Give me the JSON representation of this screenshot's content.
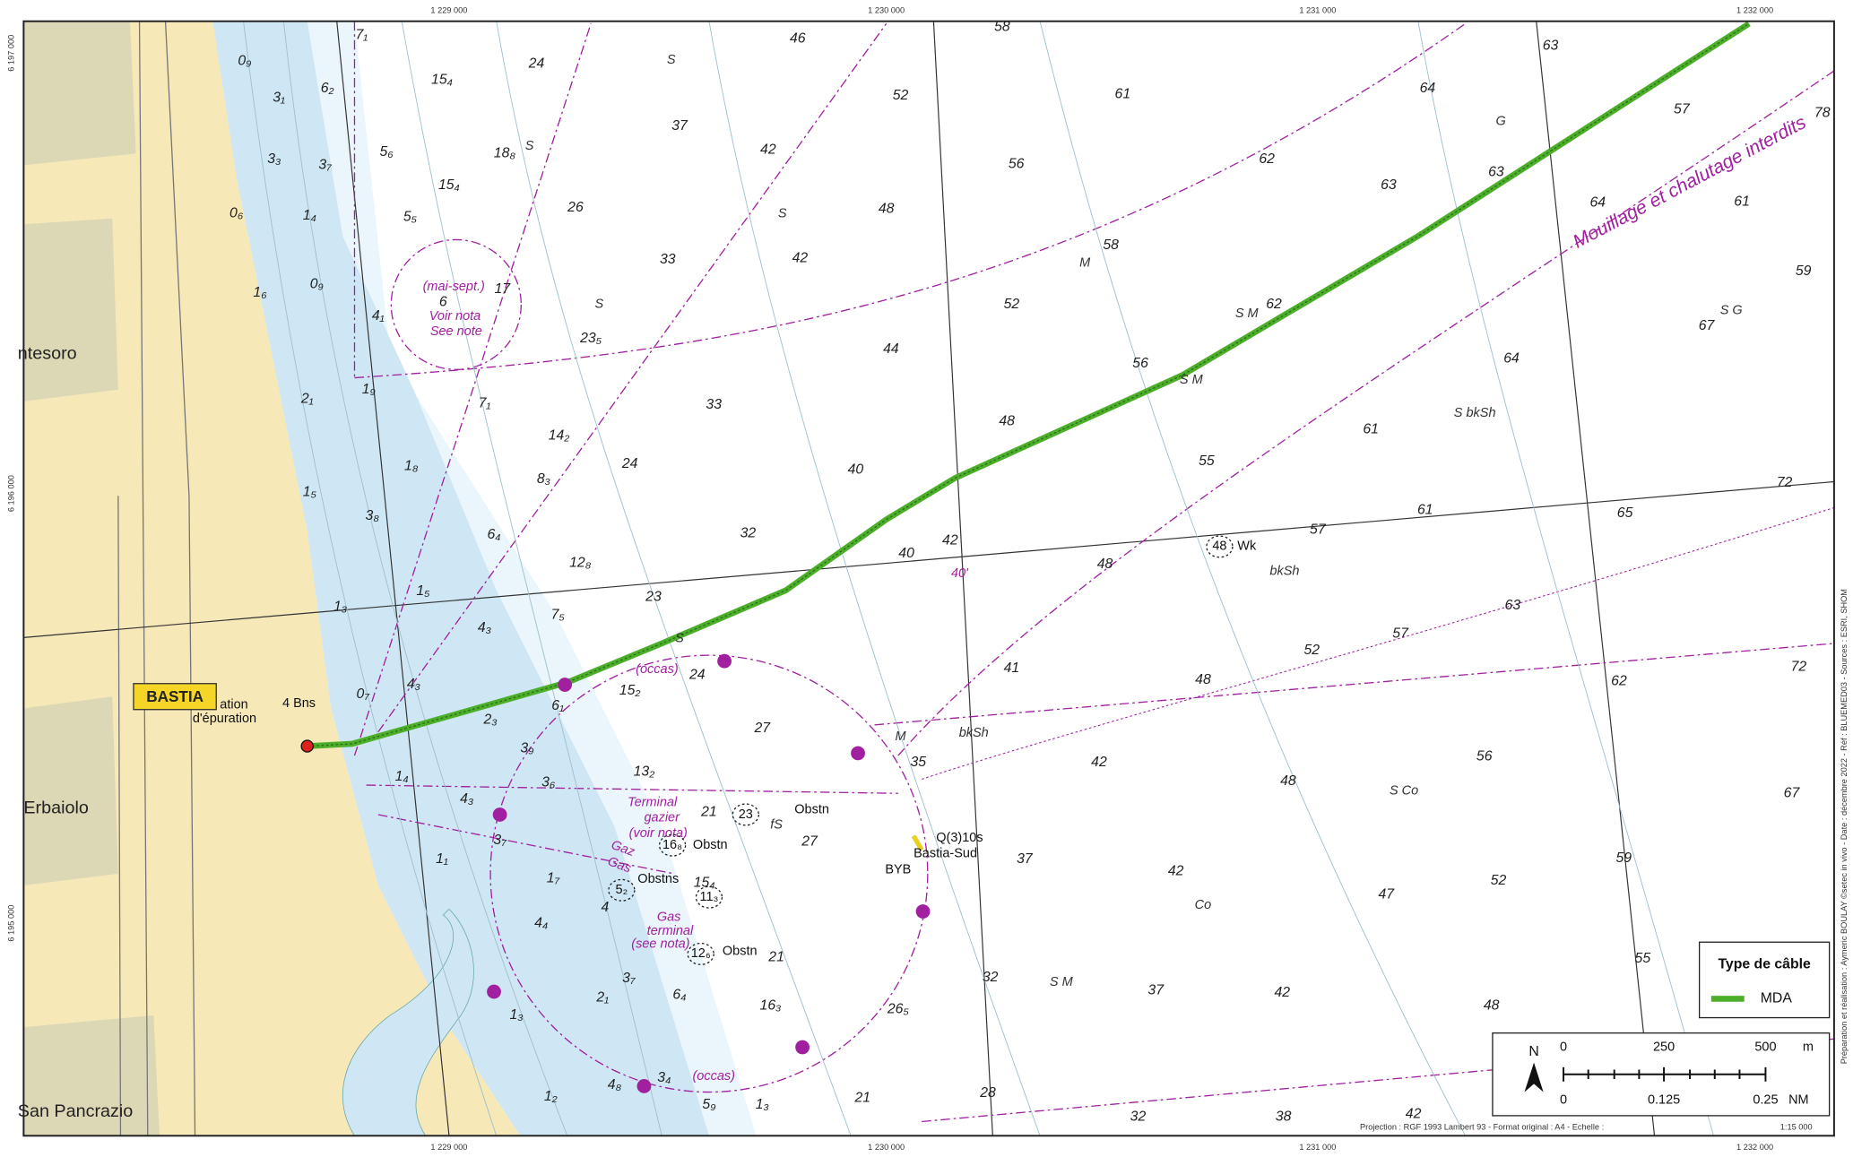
{
  "map": {
    "grid_top": [
      "1 229 000",
      "1 230 000",
      "1 231 000",
      "1 232 000"
    ],
    "grid_bottom": [
      "1 229 000",
      "1 230 000",
      "1 231 000",
      "1 232 000"
    ],
    "grid_left": [
      "6 197 000",
      "6 196 000",
      "6 195 000"
    ],
    "places": [
      "ntesoro",
      "BASTIA",
      "Erbaiolo",
      "San Pancrazio"
    ],
    "soundings": [
      "0₉",
      "3₁",
      "3₃",
      "0₆",
      "1₆",
      "7₁",
      "6₂",
      "3₇",
      "1₄",
      "0₉",
      "4₁",
      "2₁",
      "1₉",
      "1₅",
      "1₈",
      "3₈",
      "1₃",
      "1₅",
      "6₄",
      "4₃",
      "7₅",
      "12₈",
      "8₃",
      "14₂",
      "7₁",
      "0₇",
      "4₃",
      "2₃",
      "3₉",
      "3₆",
      "1₄",
      "4₃",
      "3₇",
      "1₁",
      "1₇",
      "4₄",
      "1₃",
      "2₁",
      "3₇",
      "6₄",
      "4",
      "1₂",
      "4₈",
      "3₄",
      "5₉",
      "1₃",
      "21",
      "16₃",
      "21",
      "26₅",
      "27",
      "27",
      "21",
      "15₄",
      "15₂",
      "13₂",
      "24",
      "6₁",
      "23",
      "32",
      "24",
      "33",
      "23₅",
      "26",
      "33",
      "37",
      "42",
      "42",
      "48",
      "44",
      "40",
      "40",
      "42",
      "48",
      "52",
      "56",
      "52",
      "46",
      "58",
      "61",
      "58",
      "56",
      "62",
      "62",
      "63",
      "64",
      "63",
      "63",
      "57",
      "64",
      "61",
      "59",
      "67",
      "64",
      "61",
      "55",
      "48",
      "57",
      "61",
      "65",
      "72",
      "63",
      "57",
      "52",
      "48",
      "41",
      "62",
      "72",
      "35",
      "42",
      "48",
      "56",
      "67",
      "37",
      "42",
      "47",
      "52",
      "59",
      "32",
      "37",
      "42",
      "48",
      "55",
      "28",
      "32",
      "38",
      "42",
      "78",
      "24",
      "15₄",
      "5₆",
      "18₈",
      "15₄",
      "5₅",
      "17",
      "6"
    ],
    "seabed": [
      "S",
      "S",
      "S",
      "S",
      "S",
      "G",
      "M",
      "S M",
      "S M",
      "S bkSh",
      "bkSh",
      "M",
      "bkSh",
      "S Co",
      "Co",
      "S M",
      "S G",
      "fS"
    ],
    "annotations_purple": [
      "(mai-sept.)",
      "Voir nota",
      "See note",
      "Mouillage et chalutage interdits",
      "(occas)",
      "(occas)",
      "Terminal",
      "gazier",
      "(voir nota)",
      "Gaz",
      "Gas",
      "Gas",
      "terminal",
      "(see nota)",
      "40'"
    ],
    "annotations_black": [
      "Obstn",
      "23",
      "Obstn",
      "16₈",
      "Obstns",
      "5₂",
      "11₃",
      "12₆",
      "Obstn",
      "48",
      "Wk",
      "Q(3)10s",
      "Bastia-Sud",
      "BYB",
      "4 Bns",
      "ation",
      "d'épuration",
      "15₄"
    ],
    "legend": {
      "title": "Type de câble",
      "items": [
        "MDA"
      ]
    },
    "scale": {
      "north": "N",
      "labels_m": [
        "0",
        "250",
        "500",
        "m"
      ],
      "labels_nm": [
        "0",
        "0.125",
        "0.25",
        "NM"
      ]
    },
    "projection": "Projection : RGF 1993 Lambert 93 - Format original : A4 - Echelle :",
    "scale_ratio": "1:15 000",
    "credits": "Préparation et réalisation : Aymeric BOULAY ©setec in vivo - Date : décembre 2022 - Réf : BLUEMED03 - Sources : ESRI, SHOM"
  }
}
